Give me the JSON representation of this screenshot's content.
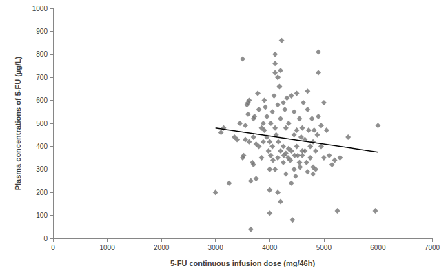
{
  "chart_data": {
    "type": "scatter",
    "x_label": "5-FU continuous infusion dose (mg/46h)",
    "y_label": "Plasma concentrations of 5-FU (µg/L)",
    "xlim": [
      0,
      7000
    ],
    "xticks": [
      0,
      1000,
      2000,
      3000,
      4000,
      5000,
      6000,
      7000
    ],
    "ylim": [
      0,
      1000
    ],
    "yticks": [
      0,
      100,
      200,
      300,
      400,
      500,
      600,
      700,
      800,
      900,
      1000
    ],
    "grid": false,
    "series": [
      {
        "type": "scatter",
        "color": "#737373",
        "marker": "diamond",
        "x": [
          3000,
          3100,
          3150,
          3250,
          3350,
          3450,
          3500,
          3500,
          3520,
          3550,
          3550,
          3580,
          3600,
          3600,
          3620,
          3620,
          3650,
          3650,
          3680,
          3700,
          3700,
          3700,
          3750,
          3750,
          3780,
          3800,
          3800,
          3850,
          3850,
          3880,
          3900,
          3900,
          3920,
          3950,
          3950,
          3980,
          4000,
          4000,
          4000,
          4000,
          4020,
          4020,
          4050,
          4050,
          4080,
          4100,
          4100,
          4100,
          4100,
          4100,
          4120,
          4150,
          4150,
          4150,
          4150,
          4180,
          4200,
          4200,
          4200,
          4200,
          4220,
          4250,
          4250,
          4250,
          4280,
          4300,
          4300,
          4300,
          4320,
          4350,
          4350,
          4380,
          4400,
          4400,
          4400,
          4420,
          4450,
          4450,
          4450,
          4480,
          4500,
          4500,
          4500,
          4520,
          4550,
          4550,
          4580,
          4600,
          4600,
          4620,
          4650,
          4650,
          4680,
          4700,
          4700,
          4720,
          4750,
          4750,
          4780,
          4800,
          4800,
          4800,
          4820,
          4850,
          4850,
          4880,
          4900,
          4900,
          4900,
          4950,
          4950,
          5000,
          5000,
          5050,
          5100,
          5150,
          5200,
          5250,
          5300,
          5450,
          5950,
          6000,
          3400,
          3880,
          4060,
          4160,
          4260,
          4340,
          4460,
          4560,
          4700,
          4600,
          3720
        ],
        "values": [
          200,
          460,
          480,
          240,
          440,
          500,
          780,
          350,
          360,
          430,
          490,
          580,
          590,
          540,
          600,
          420,
          250,
          40,
          330,
          320,
          520,
          440,
          410,
          260,
          630,
          400,
          560,
          350,
          480,
          500,
          470,
          600,
          570,
          530,
          440,
          380,
          420,
          300,
          210,
          110,
          360,
          500,
          550,
          400,
          620,
          800,
          720,
          760,
          480,
          300,
          450,
          700,
          580,
          350,
          200,
          660,
          730,
          520,
          380,
          160,
          860,
          590,
          400,
          330,
          560,
          480,
          370,
          280,
          610,
          500,
          390,
          340,
          380,
          620,
          240,
          80,
          450,
          550,
          300,
          270,
          630,
          470,
          400,
          360,
          520,
          330,
          440,
          480,
          360,
          590,
          430,
          380,
          330,
          560,
          640,
          470,
          400,
          350,
          520,
          420,
          310,
          280,
          470,
          380,
          300,
          450,
          810,
          720,
          530,
          490,
          400,
          590,
          350,
          470,
          360,
          320,
          340,
          120,
          350,
          440,
          120,
          490,
          430,
          420,
          340,
          420,
          360,
          350,
          360,
          310,
          290,
          380,
          530
        ]
      },
      {
        "type": "line",
        "color": "#000000",
        "line_style": "solid",
        "x": [
          3000,
          6000
        ],
        "values": [
          480,
          375
        ]
      }
    ]
  }
}
